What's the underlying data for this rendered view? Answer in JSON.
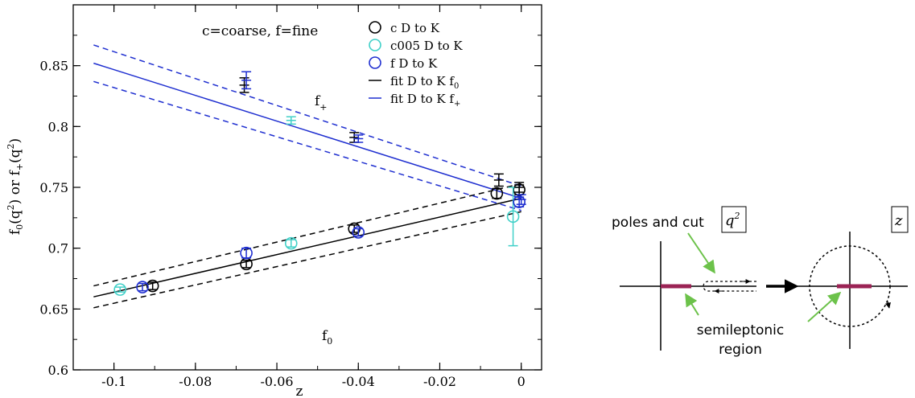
{
  "chart_data": {
    "type": "scatter",
    "title": "",
    "xlabel": "z",
    "ylabel": "f0(q2) or f+(q2)",
    "xlim": [
      -0.11,
      0.005
    ],
    "ylim": [
      0.6,
      0.9
    ],
    "xticks": [
      -0.1,
      -0.08,
      -0.06,
      -0.04,
      -0.02,
      0
    ],
    "xtick_labels": [
      "-0.1",
      "-0.08",
      "-0.06",
      "-0.04",
      "-0.02",
      "0"
    ],
    "yticks": [
      0.6,
      0.65,
      0.7,
      0.75,
      0.8,
      0.85
    ],
    "ytick_labels": [
      "0.6",
      "0.65",
      "0.7",
      "0.75",
      "0.8",
      "0.85"
    ],
    "grid": false,
    "legend_position": "top-right",
    "annotations": {
      "note": "c=coarse, f=fine",
      "fplus_label": "f+",
      "fzero_label": "f0"
    },
    "series": [
      {
        "name": "c D to K",
        "kind": "circles",
        "color": "#000000",
        "points": [
          {
            "x": -0.0905,
            "y": 0.669,
            "err": 0.003
          },
          {
            "x": -0.0675,
            "y": 0.687,
            "err": 0.003
          },
          {
            "x": -0.041,
            "y": 0.716,
            "err": 0.003
          },
          {
            "x": -0.006,
            "y": 0.745,
            "err": 0.004
          },
          {
            "x": -0.0005,
            "y": 0.748,
            "err": 0.004
          }
        ]
      },
      {
        "name": "c005 D to K",
        "kind": "circles",
        "color": "#40d0c8",
        "points": [
          {
            "x": -0.0985,
            "y": 0.666,
            "err": 0.002
          },
          {
            "x": -0.0565,
            "y": 0.704,
            "err": 0.003
          },
          {
            "x": -0.002,
            "y": 0.726,
            "err": 0.024
          }
        ]
      },
      {
        "name": "f D to K",
        "kind": "circles",
        "color": "#1f2fd0",
        "points": [
          {
            "x": -0.093,
            "y": 0.668,
            "err": 0.003
          },
          {
            "x": -0.0675,
            "y": 0.696,
            "err": 0.004
          },
          {
            "x": -0.04,
            "y": 0.713,
            "err": 0.003
          },
          {
            "x": -0.0005,
            "y": 0.738,
            "err": 0.004
          }
        ]
      },
      {
        "name": "c D to K (f+)",
        "kind": "errorbars",
        "color": "#000000",
        "points": [
          {
            "x": -0.068,
            "y": 0.834,
            "err": 0.006
          },
          {
            "x": -0.041,
            "y": 0.791,
            "err": 0.004
          },
          {
            "x": -0.0055,
            "y": 0.756,
            "err": 0.005
          },
          {
            "x": -0.0005,
            "y": 0.75,
            "err": 0.004
          }
        ]
      },
      {
        "name": "c005 D to K (f+)",
        "kind": "errorbars",
        "color": "#40d0c8",
        "points": [
          {
            "x": -0.0565,
            "y": 0.805,
            "err": 0.003
          }
        ]
      },
      {
        "name": "f D to K (f+)",
        "kind": "errorbars",
        "color": "#1f2fd0",
        "points": [
          {
            "x": -0.0675,
            "y": 0.838,
            "err": 0.007
          },
          {
            "x": -0.04,
            "y": 0.79,
            "err": 0.003
          },
          {
            "x": 0.0,
            "y": 0.74,
            "err": 0.004
          }
        ]
      }
    ],
    "fits": [
      {
        "name": "fit D to K f0",
        "color": "#000000",
        "x": [
          -0.105,
          0.0
        ],
        "central": [
          0.66,
          0.741
        ],
        "upper": [
          0.669,
          0.753
        ],
        "lower": [
          0.651,
          0.73
        ]
      },
      {
        "name": "fit D to K f+",
        "color": "#1f2fd0",
        "x": [
          -0.105,
          0.0
        ],
        "central": [
          0.852,
          0.741
        ],
        "upper": [
          0.867,
          0.751
        ],
        "lower": [
          0.837,
          0.731
        ]
      }
    ],
    "legend": [
      {
        "label": "c D to K",
        "marker": "circle",
        "color": "#000000"
      },
      {
        "label": "c005 D to K",
        "marker": "circle",
        "color": "#40d0c8"
      },
      {
        "label": "f D to K",
        "marker": "circle",
        "color": "#1f2fd0"
      },
      {
        "label": "fit D to K f0",
        "marker": "line",
        "color": "#000000"
      },
      {
        "label": "fit D to K f+",
        "marker": "line",
        "color": "#1f2fd0"
      }
    ]
  },
  "diagram": {
    "q2_box": "q2",
    "z_box": "z",
    "poles_label": "poles and cut",
    "semileptonic_label_1": "semileptonic",
    "semileptonic_label_2": "region",
    "cut_color": "#9b2355",
    "arrow_color": "#6cc24a"
  }
}
